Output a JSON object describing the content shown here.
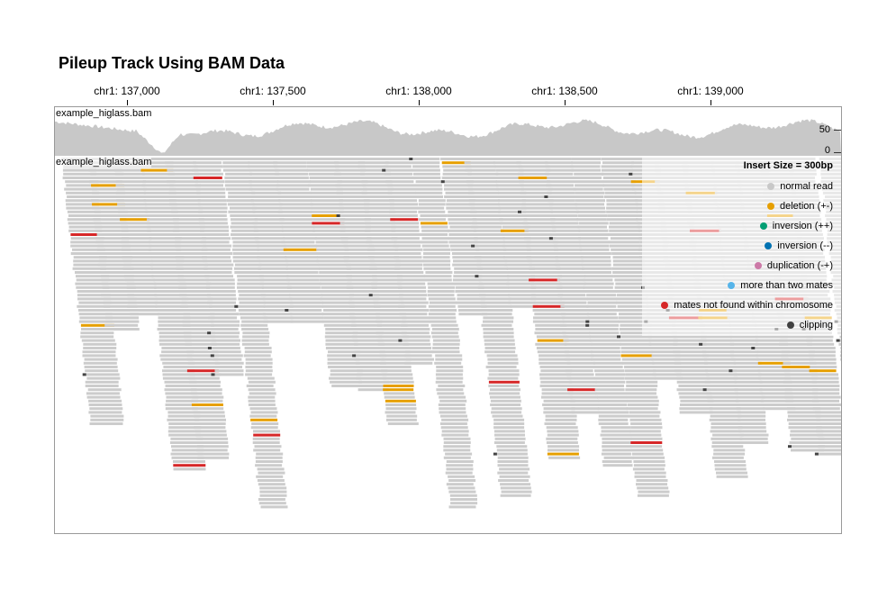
{
  "title": "Pileup Track Using BAM Data",
  "axis": {
    "ticks": [
      "chr1: 137,000",
      "chr1: 137,500",
      "chr1: 138,000",
      "chr1: 138,500",
      "chr1: 139,000"
    ]
  },
  "coverage_track": {
    "label": "example_higlass.bam",
    "y_ticks": [
      "50",
      "0"
    ]
  },
  "pileup_track": {
    "label": "example_higlass.bam"
  },
  "legend": {
    "title": "Insert Size = 300bp",
    "items": [
      {
        "label": "normal read",
        "color": "#c8c8c8"
      },
      {
        "label": "deletion (+-)",
        "color": "#e69f00"
      },
      {
        "label": "inversion (++)",
        "color": "#009e73"
      },
      {
        "label": "inversion (--)",
        "color": "#0072b2"
      },
      {
        "label": "duplication (-+)",
        "color": "#cc79a7"
      },
      {
        "label": "more than two mates",
        "color": "#56b4e9"
      },
      {
        "label": "mates not found within chromosome",
        "color": "#d62728"
      },
      {
        "label": "clipping",
        "color": "#414141"
      }
    ]
  },
  "colors": {
    "read": "#cccccc",
    "coverage": "#c8c8c8",
    "deletion": "#e69f00",
    "mates_not_found": "#d62728",
    "clipping": "#444444"
  }
}
